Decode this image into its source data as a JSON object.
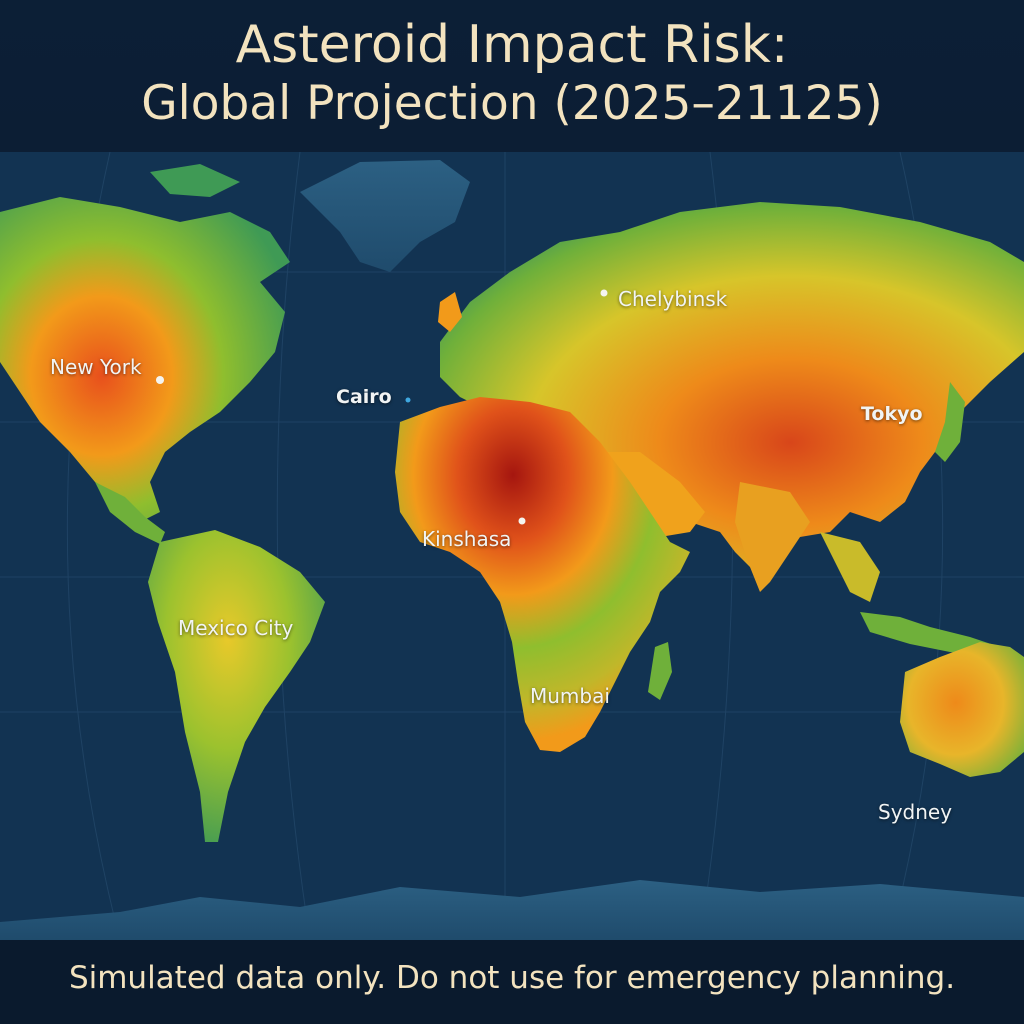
{
  "title": {
    "line1": "Asteroid Impact Risk:",
    "line2": "Global Projection (2025–21125)"
  },
  "map": {
    "projection": "world",
    "color_scale": [
      "#2f8a53",
      "#8fbe2e",
      "#e0c92a",
      "#f29a1a",
      "#e0521a",
      "#a5160f"
    ],
    "ocean_color": "#123352",
    "ice_color": "#2c6083",
    "hotspots": [
      {
        "region": "North Africa",
        "level": "highest"
      },
      {
        "region": "Central Asia / China",
        "level": "high"
      },
      {
        "region": "Central United States",
        "level": "high"
      },
      {
        "region": "Australia",
        "level": "moderate"
      },
      {
        "region": "Southern Africa",
        "level": "moderate"
      }
    ]
  },
  "cities": [
    {
      "name": "New York",
      "weight": "normal"
    },
    {
      "name": "Chelybinsk",
      "weight": "normal"
    },
    {
      "name": "Cairo",
      "weight": "bold"
    },
    {
      "name": "Tokyo",
      "weight": "bold"
    },
    {
      "name": "Kinshasa",
      "weight": "normal"
    },
    {
      "name": "Mexico City",
      "weight": "normal"
    },
    {
      "name": "Mumbai",
      "weight": "normal"
    },
    {
      "name": "Sydney",
      "weight": "normal"
    }
  ],
  "footer": "Simulated data only. Do not use for emergency planning."
}
